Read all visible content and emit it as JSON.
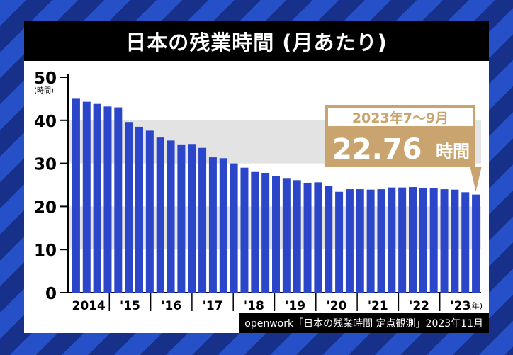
{
  "title": "日本の残業時間 (月あたり)",
  "source": "openwork「日本の残業時間 定点観測」2023年11月",
  "colors": {
    "bar": "#2b46c8",
    "band": "#e3e3e3",
    "callout": "#c9a46e",
    "title_bg": "#000000"
  },
  "chart_data": {
    "type": "bar",
    "ylabel": "(時間)",
    "xunit": "(年)",
    "ylim": [
      0,
      50
    ],
    "yticks": [
      0,
      10,
      20,
      30,
      40,
      50
    ],
    "xtick_labels": [
      "2014",
      "'15",
      "'16",
      "'17",
      "'18",
      "'19",
      "'20",
      "'21",
      "'22",
      "'23"
    ],
    "values": [
      45.0,
      44.3,
      43.8,
      43.2,
      43.0,
      39.6,
      38.5,
      37.6,
      36.0,
      35.3,
      34.4,
      34.5,
      33.6,
      31.4,
      31.2,
      30.0,
      29.0,
      28.0,
      27.8,
      27.0,
      26.6,
      26.1,
      25.5,
      25.6,
      24.7,
      23.4,
      24.0,
      24.0,
      23.9,
      24.0,
      24.4,
      24.4,
      24.5,
      24.3,
      24.2,
      24.0,
      23.9,
      23.3,
      22.76
    ],
    "annotation": {
      "period": "2023年7〜9月",
      "value": "22.76",
      "unit": "時間"
    }
  }
}
